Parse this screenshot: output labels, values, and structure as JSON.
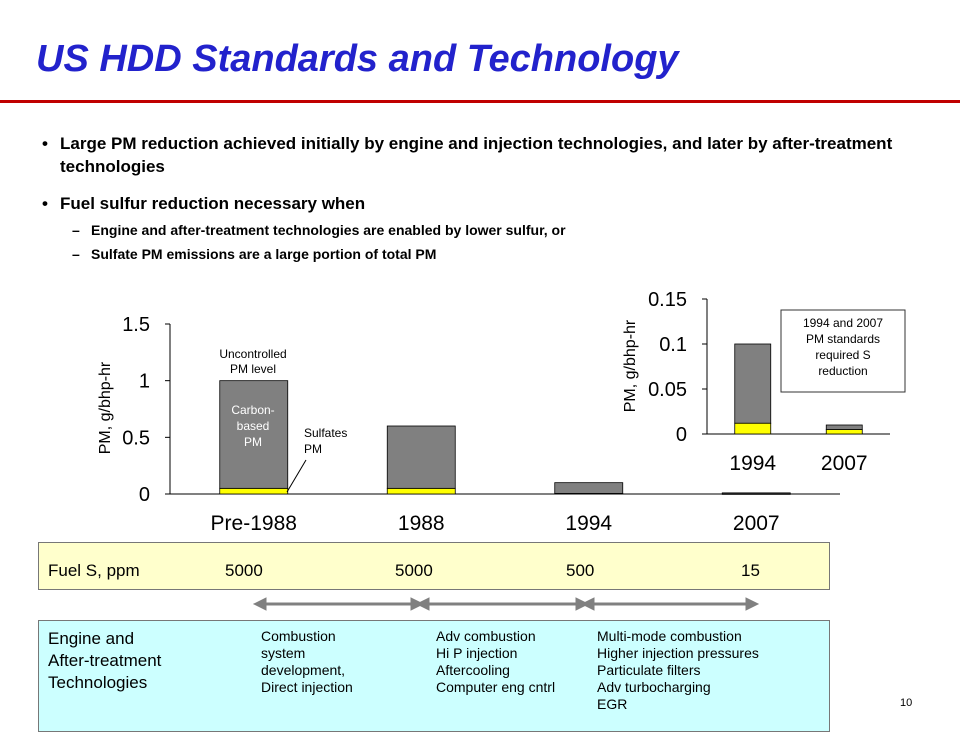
{
  "title": "US HDD Standards and Technology",
  "bullets": {
    "b1": "Large PM reduction achieved initially by engine and injection technologies, and later by after-treatment technologies",
    "b2": "Fuel sulfur reduction necessary when",
    "sub1": "Engine and after-treatment technologies are enabled by lower sulfur, or",
    "sub2": "Sulfate PM emissions are a large portion of total PM",
    "dot": "•",
    "dash": "–"
  },
  "chart_data": [
    {
      "type": "bar",
      "stacked": true,
      "categories": [
        "Pre-1988",
        "1988",
        "1994",
        "2007"
      ],
      "series": [
        {
          "name": "Sulfates PM",
          "values": [
            0.05,
            0.05,
            0.005,
            0.001
          ],
          "color": "#ffff00"
        },
        {
          "name": "Carbon-based PM",
          "values": [
            0.95,
            0.55,
            0.095,
            0.009
          ],
          "color": "#808080"
        }
      ],
      "ylabel": "PM, g/bhp-hr",
      "ylim": [
        0,
        1.5
      ],
      "yticks": [
        "0",
        "0.5",
        "1",
        "1.5"
      ],
      "annotations": {
        "uncontrolled_line1": "Uncontrolled",
        "uncontrolled_line2": "PM level",
        "carbon_line1": "Carbon-",
        "carbon_line2": "based",
        "carbon_line3": "PM",
        "sulfates_line1": "Sulfates",
        "sulfates_line2": "PM"
      }
    },
    {
      "type": "bar",
      "stacked": true,
      "categories": [
        "1994",
        "2007"
      ],
      "series": [
        {
          "name": "Sulfates PM",
          "values": [
            0.012,
            0.005
          ],
          "color": "#ffff00"
        },
        {
          "name": "Carbon-based PM",
          "values": [
            0.088,
            0.005
          ],
          "color": "#808080"
        }
      ],
      "ylabel": "PM, g/bhp-hr",
      "ylim": [
        0,
        0.15
      ],
      "yticks": [
        "0",
        "0.05",
        "0.1",
        "0.15"
      ],
      "note_lines": [
        "1994 and 2007",
        "PM standards",
        "required S",
        "reduction"
      ]
    }
  ],
  "fuel": {
    "label": "Fuel S, ppm",
    "values": [
      "5000",
      "5000",
      "500",
      "15"
    ]
  },
  "tech": {
    "label_lines": [
      "Engine and",
      "After-treatment",
      "Technologies"
    ],
    "columns": [
      [
        "Combustion",
        "system",
        "development,",
        "Direct injection"
      ],
      [
        "Adv combustion",
        "Hi P injection",
        "Aftercooling",
        "Computer eng cntrl"
      ],
      [
        "Multi-mode combustion",
        "Higher injection pressures",
        "Particulate filters",
        "Adv turbocharging",
        "EGR"
      ]
    ]
  },
  "page_number": "10"
}
